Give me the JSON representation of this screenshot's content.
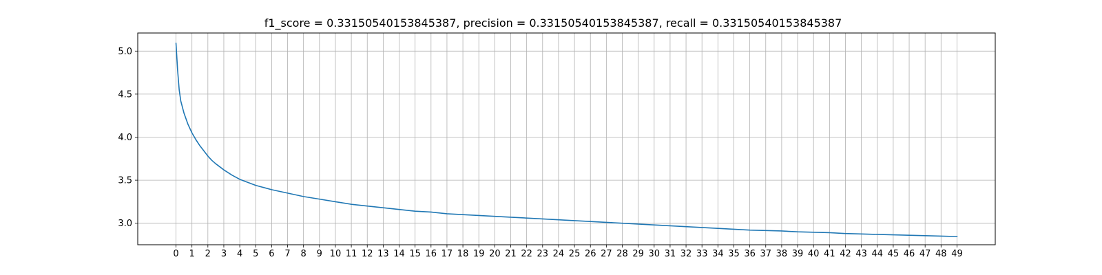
{
  "chart_data": {
    "type": "line",
    "title": "f1_score = 0.33150540153845387, precision = 0.33150540153845387, recall = 0.33150540153845387",
    "xlabel": "",
    "ylabel": "",
    "xlim": [
      -2.4,
      51.4
    ],
    "ylim": [
      2.75,
      5.21
    ],
    "grid": true,
    "x_ticks": [
      0,
      1,
      2,
      3,
      4,
      5,
      6,
      7,
      8,
      9,
      10,
      11,
      12,
      13,
      14,
      15,
      16,
      17,
      18,
      19,
      20,
      21,
      22,
      23,
      24,
      25,
      26,
      27,
      28,
      29,
      30,
      31,
      32,
      33,
      34,
      35,
      36,
      37,
      38,
      39,
      40,
      41,
      42,
      43,
      44,
      45,
      46,
      47,
      48,
      49
    ],
    "y_ticks": [
      3.0,
      3.5,
      4.0,
      4.5,
      5.0
    ],
    "y_tick_labels": [
      "3.0",
      "3.5",
      "4.0",
      "4.5",
      "5.0"
    ],
    "series": [
      {
        "color": "#1f77b4",
        "x": [
          0,
          0.1,
          0.2,
          0.3,
          0.5,
          0.75,
          1,
          1.25,
          1.5,
          1.75,
          2,
          2.25,
          2.5,
          3,
          3.5,
          4,
          5,
          6,
          7,
          8,
          9,
          10,
          11,
          12,
          13,
          14,
          15,
          16,
          17,
          18,
          19,
          20,
          21,
          22,
          23,
          24,
          25,
          26,
          27,
          28,
          29,
          30,
          31,
          32,
          33,
          34,
          35,
          36,
          37,
          38,
          39,
          40,
          41,
          42,
          43,
          44,
          45,
          46,
          47,
          48,
          49
        ],
        "y": [
          5.09,
          4.78,
          4.55,
          4.42,
          4.28,
          4.15,
          4.05,
          3.97,
          3.9,
          3.84,
          3.78,
          3.73,
          3.69,
          3.62,
          3.56,
          3.51,
          3.44,
          3.39,
          3.35,
          3.31,
          3.28,
          3.25,
          3.22,
          3.2,
          3.18,
          3.16,
          3.14,
          3.13,
          3.11,
          3.1,
          3.09,
          3.08,
          3.07,
          3.06,
          3.05,
          3.04,
          3.03,
          3.02,
          3.01,
          3.0,
          2.99,
          2.98,
          2.97,
          2.96,
          2.95,
          2.94,
          2.93,
          2.92,
          2.915,
          2.91,
          2.9,
          2.895,
          2.89,
          2.88,
          2.875,
          2.87,
          2.865,
          2.86,
          2.855,
          2.85,
          2.845
        ]
      }
    ]
  }
}
